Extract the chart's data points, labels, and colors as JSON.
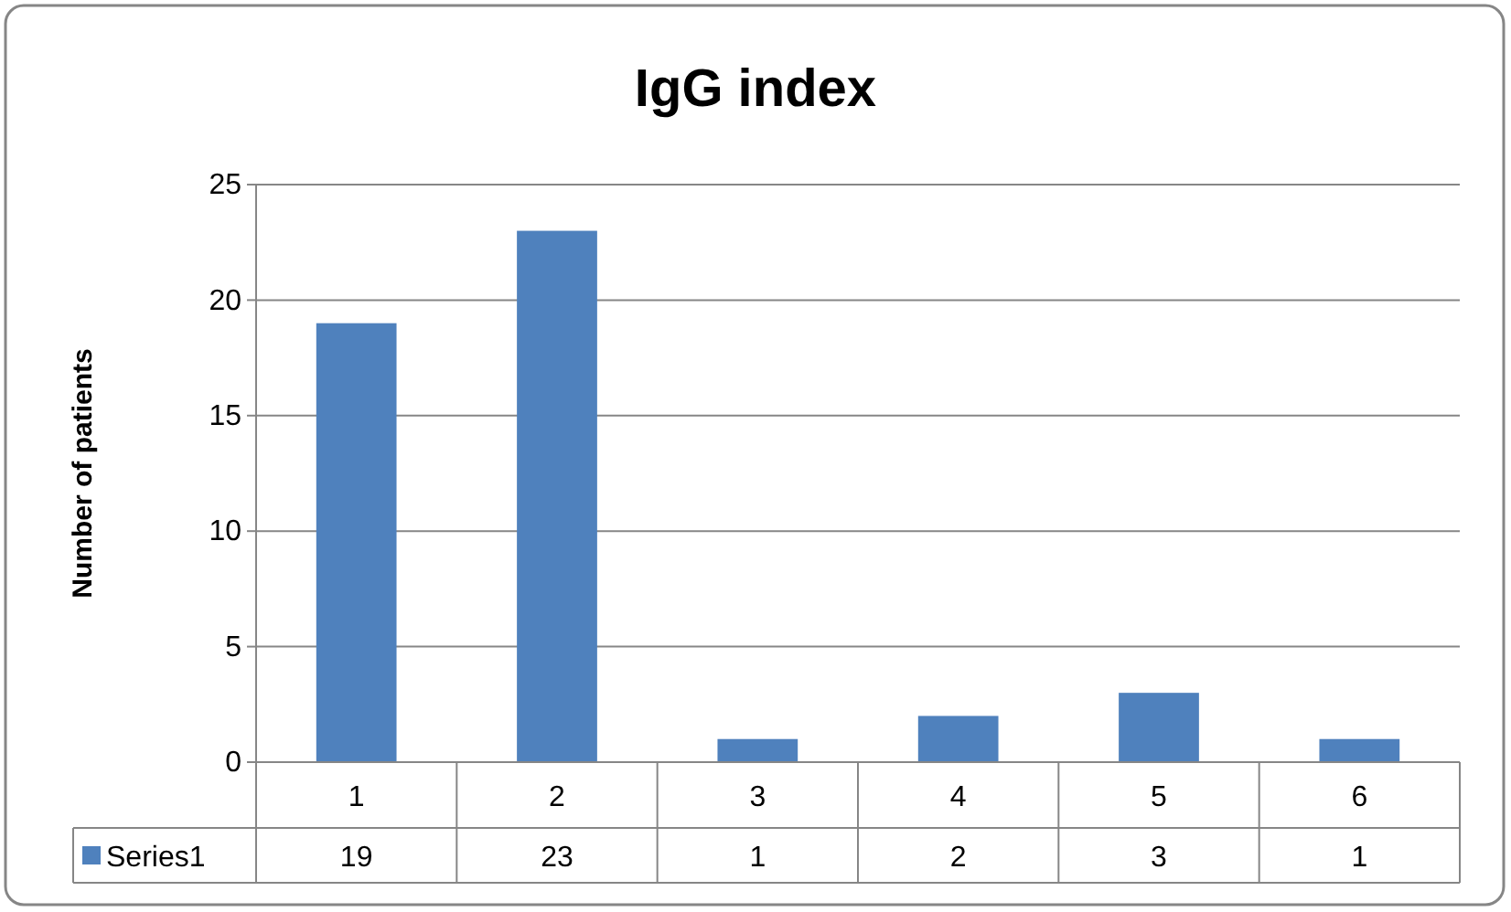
{
  "chart_data": {
    "type": "bar",
    "title": "IgG index",
    "ylabel": "Number of patients",
    "categories": [
      "1",
      "2",
      "3",
      "4",
      "5",
      "6"
    ],
    "series": [
      {
        "name": "Series1",
        "color": "#4f81bd",
        "values": [
          19,
          23,
          1,
          2,
          3,
          1
        ]
      }
    ],
    "ylim": [
      0,
      25
    ],
    "yticks": [
      0,
      5,
      10,
      15,
      20,
      25
    ],
    "grid": "y",
    "legend": "bottom",
    "data_labels": true
  }
}
